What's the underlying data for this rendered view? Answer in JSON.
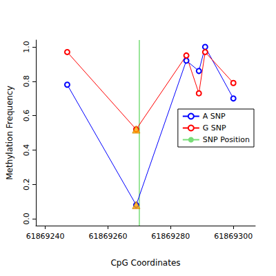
{
  "chart_data": {
    "type": "line",
    "x_label": "CpG Coordinates",
    "y_label": "Methylation Frequency",
    "xlim": [
      61869237,
      61869307
    ],
    "xticks": [
      61869240,
      61869260,
      61869280,
      61869300
    ],
    "ylim": [
      -0.04,
      1.04
    ],
    "yticks": [
      {
        "value": 0,
        "label": "0.0"
      },
      {
        "value": 0.2,
        "label": "0.2"
      },
      {
        "value": 0.4,
        "label": "0.4"
      },
      {
        "value": 0.6,
        "label": "0.6"
      },
      {
        "value": 0.8,
        "label": "0.8"
      },
      {
        "value": 1,
        "label": "1.0"
      }
    ],
    "grid": false,
    "legend": "right",
    "series": [
      {
        "name": "A SNP",
        "color": "#0000FF",
        "marker": "open_circle",
        "x": [
          61869247,
          61869269,
          61869285,
          61869289,
          61869291,
          61869300
        ],
        "values": [
          0.78,
          0.08,
          0.92,
          0.86,
          1.0,
          0.7
        ]
      },
      {
        "name": "G SNP",
        "color": "#FF0000",
        "marker": "open_circle",
        "x": [
          61869247,
          61869269,
          61869285,
          61869289,
          61869291,
          61869300
        ],
        "values": [
          0.97,
          0.52,
          0.95,
          0.73,
          0.97,
          0.79
        ]
      }
    ],
    "markers": {
      "x": [
        61869269,
        61869269
      ],
      "values": [
        0.08,
        0.52
      ],
      "color": "#FFA500",
      "marker": "triangle"
    },
    "vlines": [
      {
        "name": "SNP Position",
        "x": 61869270,
        "color": "#77DD77"
      }
    ]
  }
}
